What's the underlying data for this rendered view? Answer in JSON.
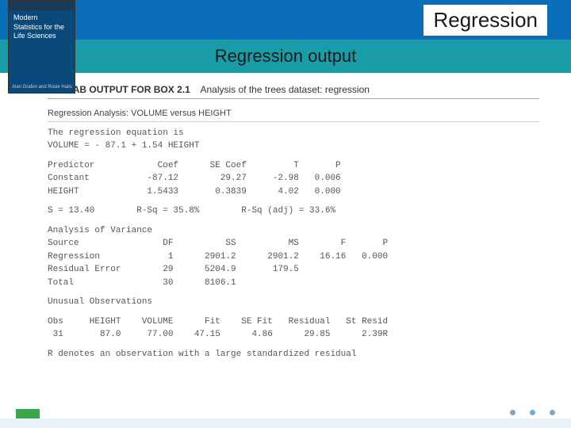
{
  "header": {
    "title": "Regression"
  },
  "subtitle": {
    "text": "Regression output"
  },
  "book": {
    "title_line1": "Modern",
    "title_line2": "Statistics for the",
    "title_line3": "Life Sciences",
    "author": "Alan Grafen and Rosie Hails"
  },
  "output": {
    "header_box": "MINITAB OUTPUT FOR BOX 2.1",
    "header_desc": "Analysis of the trees dataset: regression",
    "analysis_title": "Regression Analysis: VOLUME versus HEIGHT",
    "eq_line1": "The regression equation is",
    "eq_line2": "VOLUME = - 87.1 + 1.54 HEIGHT",
    "pred_header": "Predictor            Coef      SE Coef         T       P",
    "pred_constant": "Constant           -87.12        29.27     -2.98   0.006",
    "pred_height": "HEIGHT             1.5433       0.3839      4.02   0.000",
    "s_line": "S = 13.40        R-Sq = 35.8%        R-Sq (adj) = 33.6%",
    "anova_title": "Analysis of Variance",
    "anova_header": "Source                DF          SS          MS        F       P",
    "anova_reg": "Regression             1      2901.2      2901.2    16.16   0.000",
    "anova_resid": "Residual Error        29      5204.9       179.5",
    "anova_total": "Total                 30      8106.1",
    "unusual_title": "Unusual Observations",
    "unusual_header": "Obs     HEIGHT    VOLUME      Fit    SE Fit   Residual   St Resid",
    "unusual_row": " 31       87.0     77.00    47.15      4.86      29.85      2.39R",
    "footnote": "R denotes an observation with a large standardized residual"
  }
}
